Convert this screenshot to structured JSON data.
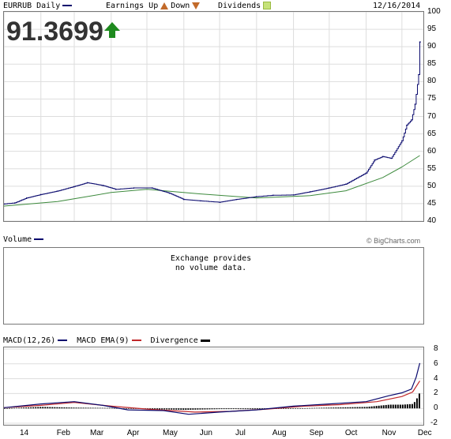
{
  "header": {
    "symbol_label": "EURRUB Daily",
    "earnings_label": "Earnings Up",
    "earnings_up_icon": "triangle-up-icon",
    "down_label": "Down",
    "earnings_down_icon": "triangle-down-icon",
    "dividends_label": "Dividends",
    "dividends_icon": "dividend-badge-icon",
    "date": "12/16/2014",
    "price": "91.3699",
    "price_arrow_icon": "arrow-up-icon"
  },
  "volume_panel": {
    "label": "Volume",
    "credit": "© BigCharts.com",
    "message_line1": "Exchange provides",
    "message_line2": "no volume data."
  },
  "macd_legend": {
    "macd_label": "MACD(12,26)",
    "ema_label": "MACD EMA(9)",
    "divergence_label": "Divergence"
  },
  "colors": {
    "price_series": "#0a0a6e",
    "moving_average": "#3d8a3d",
    "macd_line": "#0a0a6e",
    "ema_line": "#c0282a",
    "divergence": "#000000",
    "arrow": "#1e8a1e",
    "grid": "#dddddd"
  },
  "chart_data": [
    {
      "type": "line",
      "title": "EURRUB Daily",
      "ylim": [
        40,
        100
      ],
      "yticks": [
        "100",
        "95",
        "90",
        "85",
        "80",
        "75",
        "70",
        "65",
        "60",
        "55",
        "50",
        "45",
        "40"
      ],
      "xtick_labels": [
        "14",
        "Feb",
        "Mar",
        "Apr",
        "May",
        "Jun",
        "Jul",
        "Aug",
        "Sep",
        "Oct",
        "Nov",
        "Dec"
      ],
      "grid": true,
      "series": [
        {
          "name": "EURRUB Daily",
          "x": [
            "2014-01-01",
            "2014-01-10",
            "2014-01-20",
            "2014-02-01",
            "2014-02-15",
            "2014-03-01",
            "2014-03-12",
            "2014-03-25",
            "2014-04-05",
            "2014-04-20",
            "2014-05-05",
            "2014-05-20",
            "2014-06-01",
            "2014-06-15",
            "2014-07-01",
            "2014-07-15",
            "2014-08-01",
            "2014-08-15",
            "2014-09-01",
            "2014-09-15",
            "2014-10-01",
            "2014-10-15",
            "2014-11-01",
            "2014-11-08",
            "2014-11-15",
            "2014-11-22",
            "2014-12-01",
            "2014-12-05",
            "2014-12-09",
            "2014-12-12",
            "2014-12-15",
            "2014-12-16"
          ],
          "y": [
            44.9,
            45.2,
            46.6,
            47.6,
            48.6,
            49.9,
            51.0,
            50.2,
            49.1,
            49.5,
            49.5,
            48.0,
            46.2,
            45.8,
            45.4,
            46.2,
            47.0,
            47.4,
            47.5,
            48.4,
            49.5,
            50.6,
            53.8,
            57.5,
            58.5,
            58.0,
            63.0,
            67.5,
            69.0,
            73.5,
            82.0,
            91.37
          ]
        },
        {
          "name": "Moving average",
          "x": [
            "2014-01-01",
            "2014-02-15",
            "2014-04-01",
            "2014-05-01",
            "2014-06-15",
            "2014-08-01",
            "2014-09-15",
            "2014-10-15",
            "2014-11-15",
            "2014-12-01",
            "2014-12-16"
          ],
          "y": [
            44.3,
            45.6,
            48.2,
            49.1,
            47.8,
            46.6,
            47.3,
            48.7,
            52.5,
            55.5,
            58.8
          ]
        }
      ]
    },
    {
      "type": "line",
      "title": "MACD(12,26)",
      "ylim": [
        -2,
        8
      ],
      "yticks": [
        "8",
        "6",
        "4",
        "2",
        "0",
        "-2"
      ],
      "xtick_labels": [
        "14",
        "Feb",
        "Mar",
        "Apr",
        "May",
        "Jun",
        "Jul",
        "Aug",
        "Sep",
        "Oct",
        "Nov",
        "Dec"
      ],
      "series": [
        {
          "name": "MACD(12,26)",
          "x": [
            "2014-01-01",
            "2014-02-01",
            "2014-03-01",
            "2014-03-25",
            "2014-04-15",
            "2014-05-15",
            "2014-06-05",
            "2014-07-01",
            "2014-08-01",
            "2014-09-01",
            "2014-10-01",
            "2014-11-01",
            "2014-11-20",
            "2014-12-01",
            "2014-12-09",
            "2014-12-13",
            "2014-12-16"
          ],
          "y": [
            0.1,
            0.6,
            0.9,
            0.4,
            -0.2,
            -0.3,
            -0.8,
            -0.5,
            -0.2,
            0.3,
            0.6,
            0.9,
            1.7,
            2.1,
            2.6,
            4.2,
            6.1
          ]
        },
        {
          "name": "MACD EMA(9)",
          "x": [
            "2014-01-01",
            "2014-02-01",
            "2014-03-01",
            "2014-04-01",
            "2014-05-01",
            "2014-06-10",
            "2014-07-10",
            "2014-08-10",
            "2014-09-10",
            "2014-10-10",
            "2014-11-10",
            "2014-12-01",
            "2014-12-10",
            "2014-12-16"
          ],
          "y": [
            0.1,
            0.4,
            0.8,
            0.3,
            -0.1,
            -0.5,
            -0.4,
            -0.1,
            0.3,
            0.5,
            0.9,
            1.6,
            2.2,
            3.7
          ]
        },
        {
          "name": "Divergence",
          "x": [
            "2014-01-01",
            "2014-02-01",
            "2014-03-01",
            "2014-04-01",
            "2014-05-01",
            "2014-06-01",
            "2014-07-01",
            "2014-08-01",
            "2014-09-01",
            "2014-10-01",
            "2014-11-01",
            "2014-11-20",
            "2014-12-01",
            "2014-12-10",
            "2014-12-14",
            "2014-12-16"
          ],
          "y": [
            0.0,
            0.2,
            0.1,
            0.05,
            -0.1,
            -0.2,
            -0.1,
            -0.1,
            0.0,
            0.1,
            0.2,
            0.5,
            0.5,
            0.6,
            1.6,
            2.4
          ]
        }
      ]
    }
  ]
}
